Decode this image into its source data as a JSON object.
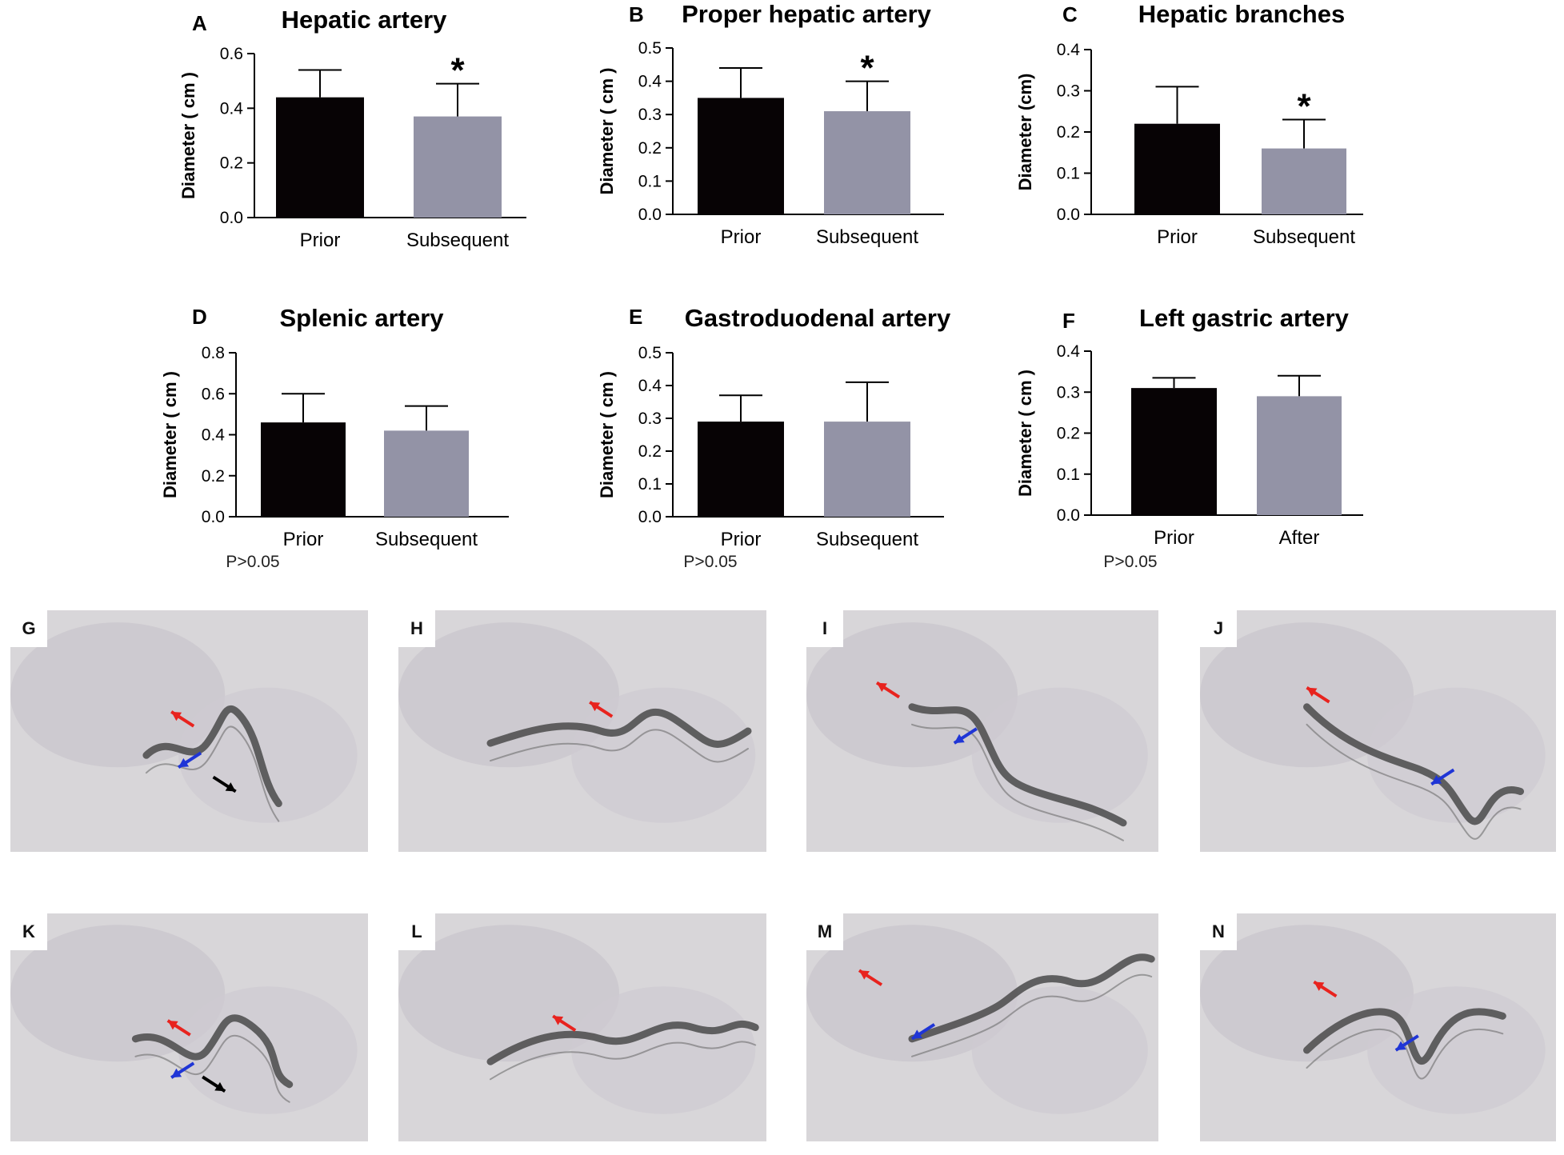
{
  "colors": {
    "prior_bar": "#070305",
    "subsequent_bar": "#9393a6",
    "axis": "#000000",
    "arrow_red": "#e8231e",
    "arrow_blue": "#1f35d6",
    "arrow_black": "#000000",
    "angiogram_bg": "#d8d6d9",
    "vessel": "#4a4a4a"
  },
  "chart_data": [
    {
      "panel": "A",
      "type": "bar",
      "title": "Hepatic artery",
      "ylabel": "Diameter ( cm )",
      "ylim": [
        0,
        0.6
      ],
      "yticks": [
        "0.0",
        "0.2",
        "0.4",
        "0.6"
      ],
      "categories": [
        "Prior",
        "Subsequent"
      ],
      "values": [
        0.44,
        0.37
      ],
      "errors": [
        0.1,
        0.12
      ],
      "significance": [
        "",
        "*"
      ],
      "note": ""
    },
    {
      "panel": "B",
      "type": "bar",
      "title": "Proper hepatic artery",
      "ylabel": "Diameter ( cm )",
      "ylim": [
        0,
        0.5
      ],
      "yticks": [
        "0.0",
        "0.1",
        "0.2",
        "0.3",
        "0.4",
        "0.5"
      ],
      "categories": [
        "Prior",
        "Subsequent"
      ],
      "values": [
        0.35,
        0.31
      ],
      "errors": [
        0.09,
        0.09
      ],
      "significance": [
        "",
        "*"
      ],
      "note": ""
    },
    {
      "panel": "C",
      "type": "bar",
      "title": "Hepatic branches",
      "ylabel": "Diameter (cm)",
      "ylim": [
        0,
        0.4
      ],
      "yticks": [
        "0.0",
        "0.1",
        "0.2",
        "0.3",
        "0.4"
      ],
      "categories": [
        "Prior",
        "Subsequent"
      ],
      "values": [
        0.22,
        0.16
      ],
      "errors": [
        0.09,
        0.07
      ],
      "significance": [
        "",
        "*"
      ],
      "note": ""
    },
    {
      "panel": "D",
      "type": "bar",
      "title": "Splenic artery",
      "ylabel": "Diameter ( cm )",
      "ylim": [
        0,
        0.8
      ],
      "yticks": [
        "0.0",
        "0.2",
        "0.4",
        "0.6",
        "0.8"
      ],
      "categories": [
        "Prior",
        "Subsequent"
      ],
      "values": [
        0.46,
        0.42
      ],
      "errors": [
        0.14,
        0.12
      ],
      "significance": [
        "",
        ""
      ],
      "note": "P>0.05"
    },
    {
      "panel": "E",
      "type": "bar",
      "title": "Gastroduodenal artery",
      "ylabel": "Diameter ( cm )",
      "ylim": [
        0,
        0.5
      ],
      "yticks": [
        "0.0",
        "0.1",
        "0.2",
        "0.3",
        "0.4",
        "0.5"
      ],
      "categories": [
        "Prior",
        "Subsequent"
      ],
      "values": [
        0.29,
        0.29
      ],
      "errors": [
        0.08,
        0.12
      ],
      "significance": [
        "",
        ""
      ],
      "note": "P>0.05"
    },
    {
      "panel": "F",
      "type": "bar",
      "title": "Left gastric artery",
      "ylabel": "Diameter ( cm )",
      "ylim": [
        0,
        0.4
      ],
      "yticks": [
        "0.0",
        "0.1",
        "0.2",
        "0.3",
        "0.4"
      ],
      "categories": [
        "Prior",
        "After"
      ],
      "values": [
        0.31,
        0.29
      ],
      "errors": [
        0.025,
        0.05
      ],
      "significance": [
        "",
        ""
      ],
      "note": "P>0.05"
    }
  ],
  "angiograms": [
    {
      "label": "G",
      "arrows": [
        "red",
        "blue",
        "black"
      ]
    },
    {
      "label": "H",
      "arrows": [
        "red"
      ]
    },
    {
      "label": "I",
      "arrows": [
        "red",
        "blue"
      ]
    },
    {
      "label": "J",
      "arrows": [
        "red",
        "blue"
      ]
    },
    {
      "label": "K",
      "arrows": [
        "red",
        "blue",
        "black"
      ]
    },
    {
      "label": "L",
      "arrows": [
        "red"
      ]
    },
    {
      "label": "M",
      "arrows": [
        "red",
        "blue"
      ]
    },
    {
      "label": "N",
      "arrows": [
        "red",
        "blue"
      ]
    }
  ]
}
